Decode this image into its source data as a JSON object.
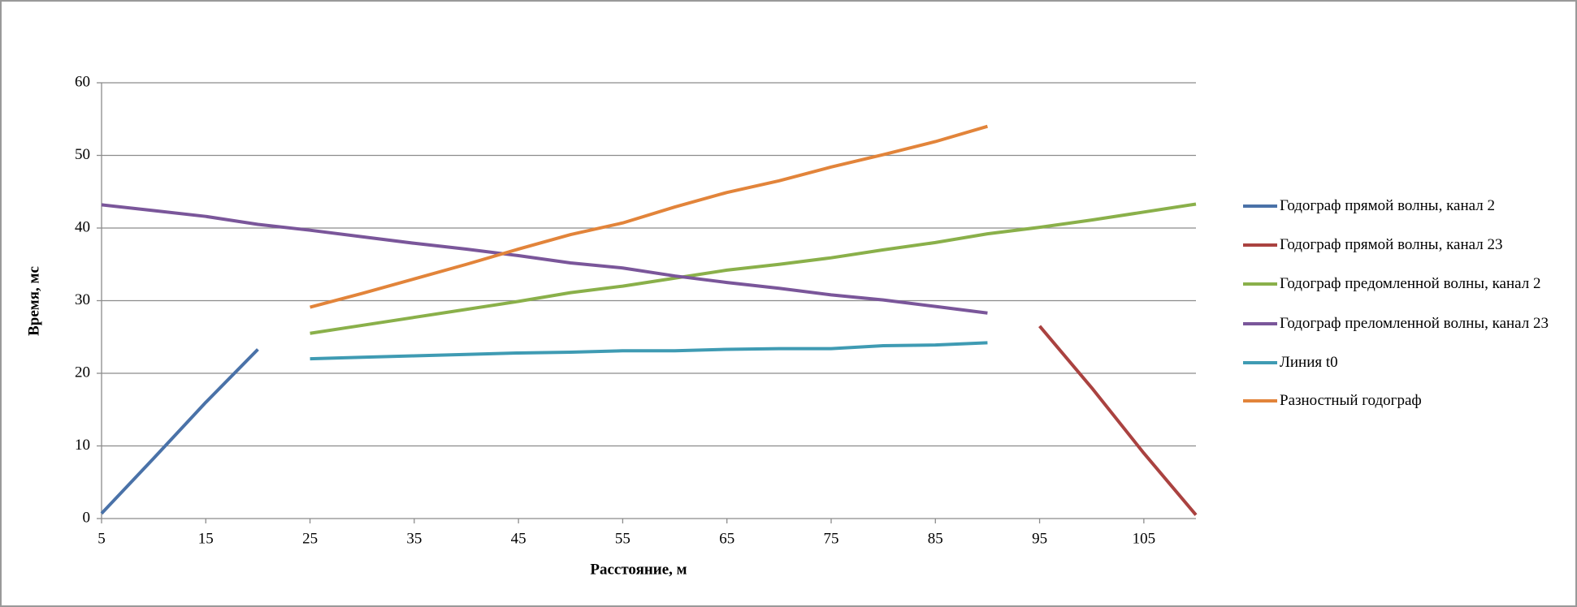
{
  "chart_data": {
    "type": "line",
    "x_label": "Расстояние, м",
    "y_label": "Время, мс",
    "x": [
      5,
      10,
      15,
      20,
      25,
      30,
      35,
      40,
      45,
      50,
      55,
      60,
      65,
      70,
      75,
      80,
      85,
      90,
      95,
      100,
      105,
      110
    ],
    "xlim": [
      5,
      110
    ],
    "xticks": [
      5,
      15,
      25,
      35,
      45,
      55,
      65,
      75,
      85,
      95,
      105
    ],
    "ylim": [
      0,
      60
    ],
    "yticks": [
      0,
      10,
      20,
      30,
      40,
      50,
      60
    ],
    "grid": true,
    "legend": "right",
    "series": [
      {
        "name": "Годограф прямой волны, канал 2",
        "color": "#4a72a8",
        "values": [
          0.7,
          8.3,
          16,
          23.3,
          null,
          null,
          null,
          null,
          null,
          null,
          null,
          null,
          null,
          null,
          null,
          null,
          null,
          null,
          null,
          null,
          null,
          null
        ]
      },
      {
        "name": "Годограф прямой волны, канал 23",
        "color": "#aa4240",
        "values": [
          null,
          null,
          null,
          null,
          null,
          null,
          null,
          null,
          null,
          null,
          null,
          null,
          null,
          null,
          null,
          null,
          null,
          null,
          26.5,
          18,
          9,
          0.5
        ]
      },
      {
        "name": "Годограф предомленной волны, канал 2",
        "color": "#8ab04a",
        "values": [
          null,
          null,
          null,
          null,
          25.5,
          26.6,
          27.7,
          28.8,
          29.9,
          31.1,
          32,
          33.1,
          34.2,
          35,
          35.9,
          37,
          38,
          39.2,
          40.1,
          41.1,
          42.2,
          43.3
        ]
      },
      {
        "name": "Годограф преломленной волны, канал 23",
        "color": "#7a569a",
        "values": [
          43.2,
          42.4,
          41.6,
          40.5,
          39.7,
          38.8,
          37.9,
          37.1,
          36.2,
          35.2,
          34.5,
          33.4,
          32.5,
          31.7,
          30.8,
          30.1,
          29.2,
          28.3,
          null,
          null,
          null,
          null
        ]
      },
      {
        "name": "Линия t0",
        "color": "#3f9bb3",
        "values": [
          null,
          null,
          null,
          null,
          22,
          22.2,
          22.4,
          22.6,
          22.8,
          22.9,
          23.1,
          23.1,
          23.3,
          23.4,
          23.4,
          23.8,
          23.9,
          24.2,
          null,
          null,
          null,
          null
        ]
      },
      {
        "name": "Разностный годограф",
        "color": "#e2843a",
        "values": [
          null,
          null,
          null,
          null,
          29.1,
          31,
          33,
          35,
          37.1,
          39.1,
          40.7,
          42.9,
          44.9,
          46.5,
          48.4,
          50.1,
          51.9,
          54,
          null,
          null,
          null,
          null
        ]
      }
    ]
  }
}
